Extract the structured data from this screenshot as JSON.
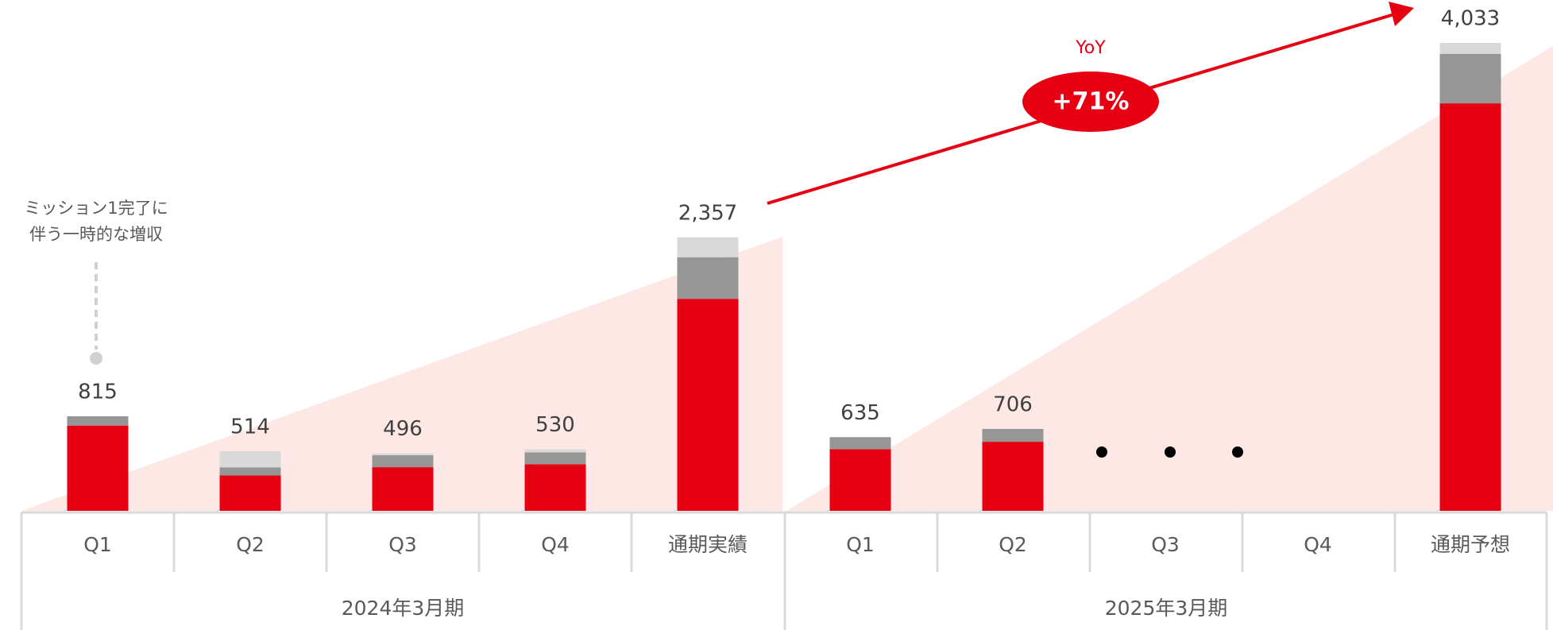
{
  "chart_data": {
    "type": "stacked_bar",
    "categories": [
      "Q1",
      "Q2",
      "Q3",
      "Q4",
      "通期実績",
      "Q1",
      "Q2",
      "Q3",
      "Q4",
      "通期予想"
    ],
    "groups": [
      "2024年3月期",
      "2025年3月期"
    ],
    "series": [
      {
        "color": "#e60012",
        "values": [
          735,
          305,
          376,
          401,
          1827,
          531,
          595,
          null,
          null,
          3512
        ]
      },
      {
        "color": "#969696",
        "values": [
          80,
          70,
          103,
          103,
          359,
          104,
          111,
          null,
          null,
          427
        ]
      },
      {
        "color": "#d9d9d9",
        "values": [
          0,
          139,
          17,
          26,
          171,
          0,
          0,
          null,
          null,
          94
        ]
      }
    ],
    "totals": [
      815,
      514,
      496,
      530,
      2357,
      635,
      706,
      null,
      null,
      4033
    ],
    "value_labels": [
      "815",
      "514",
      "496",
      "530",
      "2,357",
      "635",
      "706",
      null,
      null,
      "4,033"
    ],
    "annotation": [
      "ミッション1完了に",
      "伴う一時的な増収"
    ],
    "yoy_label": "YoY",
    "yoy_value": "+71%"
  }
}
